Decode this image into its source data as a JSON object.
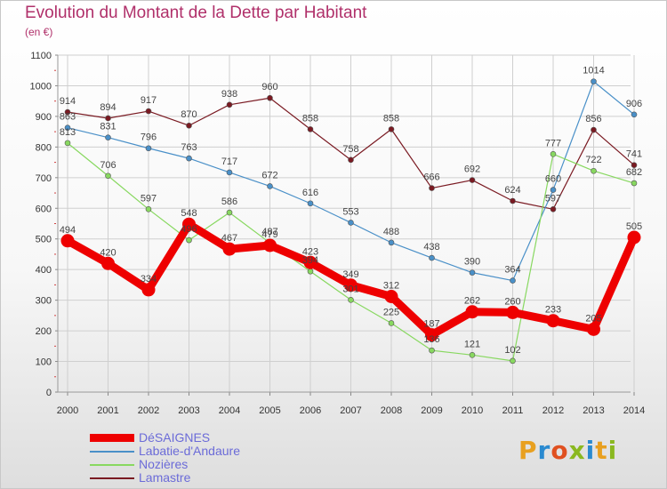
{
  "title": "Evolution du Montant de la Dette par Habitant",
  "unit": "(en €)",
  "logo": "Proxiti",
  "chart_data": {
    "type": "line",
    "x": [
      "2000",
      "2001",
      "2002",
      "2003",
      "2004",
      "2005",
      "2006",
      "2007",
      "2008",
      "2009",
      "2010",
      "2011",
      "2012",
      "2013",
      "2014"
    ],
    "ylim": [
      0,
      1100
    ],
    "yticks": [
      0,
      100,
      200,
      300,
      400,
      500,
      600,
      700,
      800,
      900,
      1000,
      1100
    ],
    "grid": true,
    "legend_position": "bottom-left",
    "series": [
      {
        "name": "Lamastre",
        "color": "#7a1a22",
        "values": [
          914,
          894,
          917,
          870,
          938,
          960,
          858,
          758,
          858,
          666,
          692,
          624,
          597,
          856,
          741
        ],
        "labels": [
          "914",
          "894",
          "917",
          "870",
          "938",
          "960",
          "858",
          "758",
          "858",
          "666",
          "692",
          "624",
          "597",
          "856",
          "741"
        ]
      },
      {
        "name": "Labatie-d'Andaure",
        "color": "#4a90c8",
        "values": [
          863,
          831,
          796,
          763,
          717,
          672,
          616,
          553,
          488,
          438,
          390,
          364,
          660,
          1014,
          906
        ],
        "labels": [
          "863",
          "831",
          "796",
          "763",
          "717",
          "672",
          "616",
          "553",
          "488",
          "438",
          "390",
          "364",
          "660",
          "1014",
          "906"
        ]
      },
      {
        "name": "Nozières",
        "color": "#88d860",
        "values": [
          813,
          706,
          597,
          496,
          586,
          487,
          394,
          301,
          225,
          136,
          121,
          102,
          777,
          722,
          682
        ],
        "labels": [
          "813",
          "706",
          "597",
          "496",
          "586",
          "487",
          "394",
          "301",
          "225",
          "136",
          "121",
          "102",
          "777",
          "722",
          "682"
        ]
      },
      {
        "name": "DéSAIGNES",
        "color": "#ee0000",
        "values": [
          494,
          420,
          334,
          548,
          467,
          479,
          423,
          349,
          312,
          187,
          262,
          260,
          233,
          205,
          505
        ],
        "labels": [
          "494",
          "420",
          "334",
          "548",
          "467",
          "479",
          "423",
          "349",
          "312",
          "187",
          "262",
          "260",
          "233",
          "205",
          "505"
        ]
      }
    ]
  },
  "legend": [
    {
      "label": "DéSAIGNES",
      "color": "#ee0000"
    },
    {
      "label": "Labatie-d'Andaure",
      "color": "#4a90c8"
    },
    {
      "label": "Nozières",
      "color": "#88d860"
    },
    {
      "label": "Lamastre",
      "color": "#7a1a22"
    }
  ]
}
